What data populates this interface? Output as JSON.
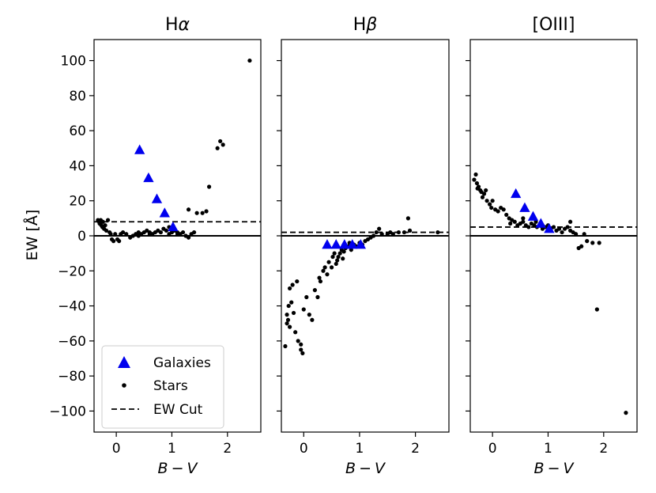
{
  "chart_data": {
    "type": "scatter",
    "shared": {
      "ylabel": "EW [Å]",
      "xlabel_main": "B",
      "xlabel_op": "−",
      "xlabel_second": "V",
      "ylim": [
        -112,
        112
      ],
      "xlim": [
        -0.4,
        2.6
      ],
      "xticks": [
        0,
        1,
        2
      ],
      "xtick_labels": [
        "0",
        "1",
        "2"
      ],
      "yticks": [
        100,
        80,
        60,
        40,
        20,
        0,
        -20,
        -40,
        -60,
        -80,
        -100
      ],
      "ytick_labels": [
        "100",
        "80",
        "60",
        "40",
        "20",
        "0",
        "−20",
        "−40",
        "−60",
        "−80",
        "−100"
      ],
      "legend": {
        "location": "lower-left",
        "entries": [
          "Galaxies",
          "Stars",
          "EW Cut"
        ]
      },
      "colors": {
        "galaxies": "#0000ee",
        "stars": "#000000",
        "cut": "#000000",
        "zero": "#000000"
      }
    },
    "panels": [
      {
        "title_main": "H",
        "title_greek": "α",
        "ew_cut": 8,
        "galaxies": [
          [
            0.42,
            49
          ],
          [
            0.58,
            33
          ],
          [
            0.73,
            21
          ],
          [
            0.87,
            13
          ],
          [
            1.02,
            5
          ]
        ],
        "stars": [
          [
            -0.33,
            9
          ],
          [
            -0.31,
            8
          ],
          [
            -0.3,
            7
          ],
          [
            -0.28,
            9
          ],
          [
            -0.27,
            6
          ],
          [
            -0.25,
            5
          ],
          [
            -0.24,
            8
          ],
          [
            -0.22,
            4
          ],
          [
            -0.2,
            6
          ],
          [
            -0.18,
            3
          ],
          [
            -0.15,
            9
          ],
          [
            -0.12,
            2
          ],
          [
            -0.1,
            1
          ],
          [
            -0.08,
            -2
          ],
          [
            -0.05,
            -3
          ],
          [
            -0.02,
            1
          ],
          [
            0.02,
            -2
          ],
          [
            0.05,
            -3
          ],
          [
            0.08,
            1
          ],
          [
            0.12,
            2
          ],
          [
            0.18,
            1
          ],
          [
            0.25,
            -1
          ],
          [
            0.3,
            0
          ],
          [
            0.35,
            1
          ],
          [
            0.4,
            2
          ],
          [
            0.45,
            1
          ],
          [
            0.5,
            2
          ],
          [
            0.55,
            3
          ],
          [
            0.6,
            2
          ],
          [
            0.65,
            1
          ],
          [
            0.7,
            2
          ],
          [
            0.75,
            3
          ],
          [
            0.8,
            2
          ],
          [
            0.85,
            4
          ],
          [
            0.9,
            3
          ],
          [
            0.95,
            1
          ],
          [
            1.0,
            2
          ],
          [
            1.05,
            3
          ],
          [
            1.1,
            2
          ],
          [
            1.15,
            1
          ],
          [
            1.2,
            2
          ],
          [
            1.25,
            0
          ],
          [
            1.3,
            -1
          ],
          [
            1.35,
            1
          ],
          [
            1.4,
            2
          ],
          [
            1.3,
            15
          ],
          [
            1.45,
            13
          ],
          [
            1.55,
            13
          ],
          [
            1.62,
            14
          ],
          [
            1.67,
            28
          ],
          [
            1.82,
            50
          ],
          [
            1.87,
            54
          ],
          [
            1.92,
            52
          ],
          [
            2.4,
            100
          ],
          [
            0.4,
            0
          ],
          [
            0.6,
            1
          ],
          [
            0.95,
            5
          ],
          [
            1.1,
            1
          ]
        ]
      },
      {
        "title_main": "H",
        "title_greek": "β",
        "ew_cut": 2,
        "galaxies": [
          [
            0.42,
            -5
          ],
          [
            0.58,
            -5
          ],
          [
            0.73,
            -5
          ],
          [
            0.87,
            -5
          ],
          [
            1.02,
            -5
          ]
        ],
        "stars": [
          [
            -0.33,
            -63
          ],
          [
            -0.3,
            -50
          ],
          [
            -0.28,
            -48
          ],
          [
            -0.25,
            -52
          ],
          [
            -0.3,
            -45
          ],
          [
            -0.27,
            -40
          ],
          [
            -0.25,
            -30
          ],
          [
            -0.22,
            -38
          ],
          [
            -0.2,
            -28
          ],
          [
            -0.18,
            -44
          ],
          [
            -0.15,
            -55
          ],
          [
            -0.12,
            -26
          ],
          [
            -0.1,
            -60
          ],
          [
            -0.05,
            -65
          ],
          [
            -0.05,
            -62
          ],
          [
            -0.02,
            -67
          ],
          [
            0.0,
            -42
          ],
          [
            0.05,
            -35
          ],
          [
            0.1,
            -45
          ],
          [
            0.15,
            -48
          ],
          [
            0.2,
            -31
          ],
          [
            0.25,
            -35
          ],
          [
            0.28,
            -24
          ],
          [
            0.3,
            -26
          ],
          [
            0.35,
            -20
          ],
          [
            0.38,
            -18
          ],
          [
            0.42,
            -22
          ],
          [
            0.45,
            -15
          ],
          [
            0.5,
            -18
          ],
          [
            0.52,
            -12
          ],
          [
            0.55,
            -10
          ],
          [
            0.6,
            -14
          ],
          [
            0.62,
            -12
          ],
          [
            0.65,
            -10
          ],
          [
            0.68,
            -8
          ],
          [
            0.72,
            -9
          ],
          [
            0.75,
            -7
          ],
          [
            0.8,
            -6
          ],
          [
            0.85,
            -8
          ],
          [
            0.9,
            -5
          ],
          [
            0.95,
            -6
          ],
          [
            1.0,
            -4
          ],
          [
            1.05,
            -5
          ],
          [
            1.1,
            -3
          ],
          [
            1.15,
            -2
          ],
          [
            1.2,
            -1
          ],
          [
            1.25,
            0
          ],
          [
            1.3,
            2
          ],
          [
            1.35,
            4
          ],
          [
            1.4,
            1
          ],
          [
            1.5,
            1
          ],
          [
            1.55,
            2
          ],
          [
            1.6,
            1
          ],
          [
            1.7,
            2
          ],
          [
            1.8,
            2
          ],
          [
            1.87,
            10
          ],
          [
            1.9,
            3
          ],
          [
            2.4,
            2
          ],
          [
            0.58,
            -16
          ],
          [
            0.7,
            -13
          ],
          [
            0.82,
            -4
          ]
        ]
      },
      {
        "title_main": "[OIII]",
        "title_greek": "",
        "ew_cut": 5,
        "galaxies": [
          [
            0.42,
            24
          ],
          [
            0.58,
            16
          ],
          [
            0.73,
            11
          ],
          [
            0.87,
            7
          ],
          [
            1.02,
            4
          ]
        ],
        "stars": [
          [
            -0.33,
            32
          ],
          [
            -0.3,
            35
          ],
          [
            -0.28,
            30
          ],
          [
            -0.27,
            27
          ],
          [
            -0.25,
            28
          ],
          [
            -0.22,
            26
          ],
          [
            -0.2,
            25
          ],
          [
            -0.18,
            22
          ],
          [
            -0.15,
            24
          ],
          [
            -0.12,
            26
          ],
          [
            -0.1,
            20
          ],
          [
            -0.05,
            18
          ],
          [
            -0.02,
            16
          ],
          [
            0.0,
            20
          ],
          [
            0.05,
            15
          ],
          [
            0.1,
            14
          ],
          [
            0.15,
            16
          ],
          [
            0.2,
            15
          ],
          [
            0.25,
            12
          ],
          [
            0.3,
            10
          ],
          [
            0.32,
            7
          ],
          [
            0.35,
            9
          ],
          [
            0.4,
            8
          ],
          [
            0.45,
            6
          ],
          [
            0.5,
            7
          ],
          [
            0.55,
            8
          ],
          [
            0.6,
            6
          ],
          [
            0.65,
            5
          ],
          [
            0.7,
            7
          ],
          [
            0.75,
            6
          ],
          [
            0.8,
            5
          ],
          [
            0.85,
            6
          ],
          [
            0.9,
            4
          ],
          [
            0.95,
            5
          ],
          [
            1.0,
            6
          ],
          [
            1.05,
            4
          ],
          [
            1.1,
            5
          ],
          [
            1.15,
            3
          ],
          [
            1.2,
            4
          ],
          [
            1.25,
            2
          ],
          [
            1.3,
            4
          ],
          [
            1.35,
            5
          ],
          [
            1.4,
            3
          ],
          [
            1.45,
            2
          ],
          [
            1.5,
            1
          ],
          [
            1.55,
            -7
          ],
          [
            1.6,
            -6
          ],
          [
            1.65,
            1
          ],
          [
            1.7,
            -3
          ],
          [
            1.8,
            -4
          ],
          [
            1.88,
            -42
          ],
          [
            1.92,
            -4
          ],
          [
            2.4,
            -101
          ],
          [
            0.55,
            10
          ],
          [
            0.78,
            8
          ],
          [
            1.4,
            8
          ]
        ]
      }
    ]
  }
}
